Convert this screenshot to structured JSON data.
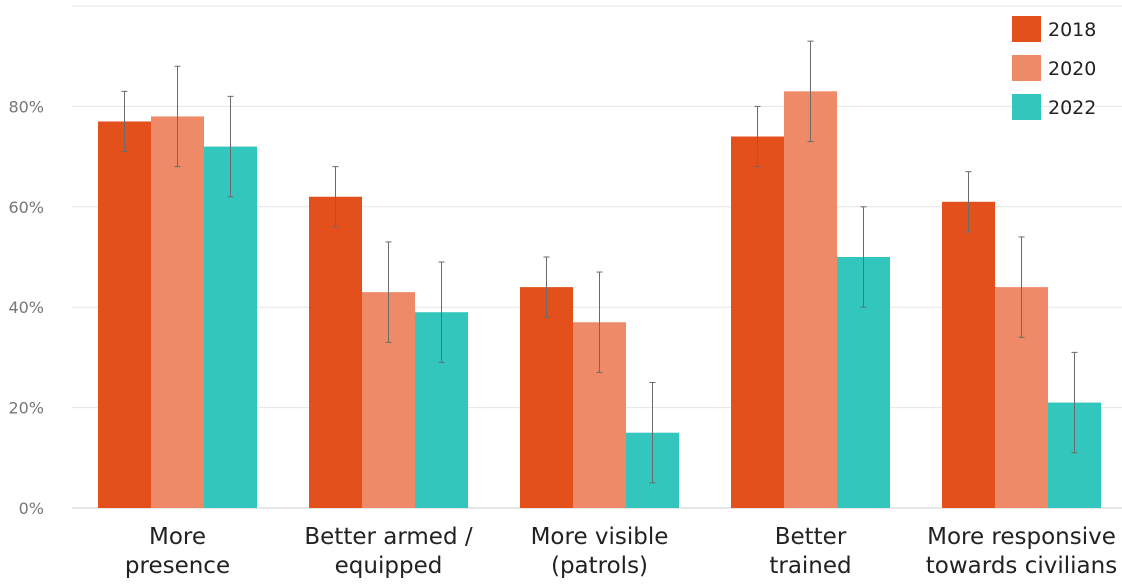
{
  "chart_data": {
    "type": "bar",
    "title": "",
    "xlabel": "",
    "ylabel": "",
    "ylim": [
      0,
      100
    ],
    "yticks": [
      0,
      20,
      40,
      60,
      80
    ],
    "ytick_labels": [
      "0%",
      "20%",
      "40%",
      "60%",
      "80%"
    ],
    "grid": true,
    "legend_position": "top-right",
    "categories": [
      [
        "More",
        "presence"
      ],
      [
        "Better armed /",
        "equipped"
      ],
      [
        "More visible",
        "(patrols)"
      ],
      [
        "Better",
        "trained"
      ],
      [
        "More responsive",
        "towards civilians"
      ]
    ],
    "series": [
      {
        "name": "2018",
        "color": "#e4501c",
        "values": [
          77,
          62,
          44,
          74,
          61
        ],
        "error_low": [
          71,
          56,
          38,
          68,
          55
        ],
        "error_high": [
          83,
          68,
          50,
          80,
          67
        ]
      },
      {
        "name": "2020",
        "color": "#ee8a67",
        "values": [
          78,
          43,
          37,
          83,
          44
        ],
        "error_low": [
          68,
          33,
          27,
          73,
          34
        ],
        "error_high": [
          88,
          53,
          47,
          93,
          54
        ]
      },
      {
        "name": "2022",
        "color": "#32c6bc",
        "values": [
          72,
          39,
          15,
          50,
          21
        ],
        "error_low": [
          62,
          29,
          5,
          40,
          11
        ],
        "error_high": [
          82,
          49,
          25,
          60,
          31
        ]
      }
    ]
  }
}
